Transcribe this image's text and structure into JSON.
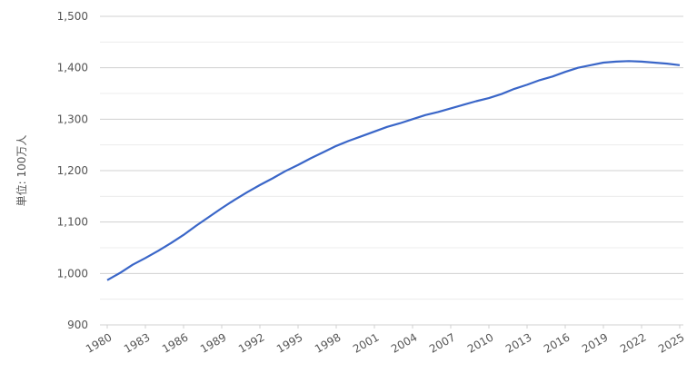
{
  "chart_data": {
    "type": "line",
    "y_label": "単位: 100万人",
    "x": [
      1980,
      1981,
      1982,
      1983,
      1984,
      1985,
      1986,
      1987,
      1988,
      1989,
      1990,
      1991,
      1992,
      1993,
      1994,
      1995,
      1996,
      1997,
      1998,
      1999,
      2000,
      2001,
      2002,
      2003,
      2004,
      2005,
      2006,
      2007,
      2008,
      2009,
      2010,
      2011,
      2012,
      2013,
      2014,
      2015,
      2016,
      2017,
      2018,
      2019,
      2020,
      2021,
      2022,
      2023,
      2024,
      2025
    ],
    "series": [
      {
        "color": "#3a66c8",
        "values": [
          987,
          1001,
          1017,
          1030,
          1044,
          1059,
          1075,
          1093,
          1110,
          1127,
          1143,
          1158,
          1172,
          1185,
          1199,
          1211,
          1224,
          1236,
          1248,
          1258,
          1267,
          1276,
          1285,
          1292,
          1300,
          1308,
          1314,
          1321,
          1328,
          1335,
          1341,
          1349,
          1359,
          1367,
          1376,
          1383,
          1392,
          1400,
          1405,
          1410,
          1412,
          1413,
          1412,
          1410,
          1408,
          1405
        ]
      }
    ],
    "xlim": [
      1980,
      2025
    ],
    "xticks": [
      1980,
      1983,
      1986,
      1989,
      1992,
      1995,
      1998,
      2001,
      2004,
      2007,
      2010,
      2013,
      2016,
      2019,
      2022,
      2025
    ],
    "ylim": [
      900,
      1500
    ],
    "yticks": [
      900,
      {
        "value": 1000,
        "label": "1,000"
      },
      {
        "value": 1100,
        "label": "1,100"
      },
      {
        "value": 1200,
        "label": "1,200"
      },
      {
        "value": 1300,
        "label": "1,300"
      },
      {
        "value": 1400,
        "label": "1,400"
      },
      {
        "value": 1500,
        "label": "1,500"
      }
    ],
    "minor_yticks": [
      950,
      1050,
      1150,
      1250,
      1350,
      1450
    ],
    "grid": true
  }
}
